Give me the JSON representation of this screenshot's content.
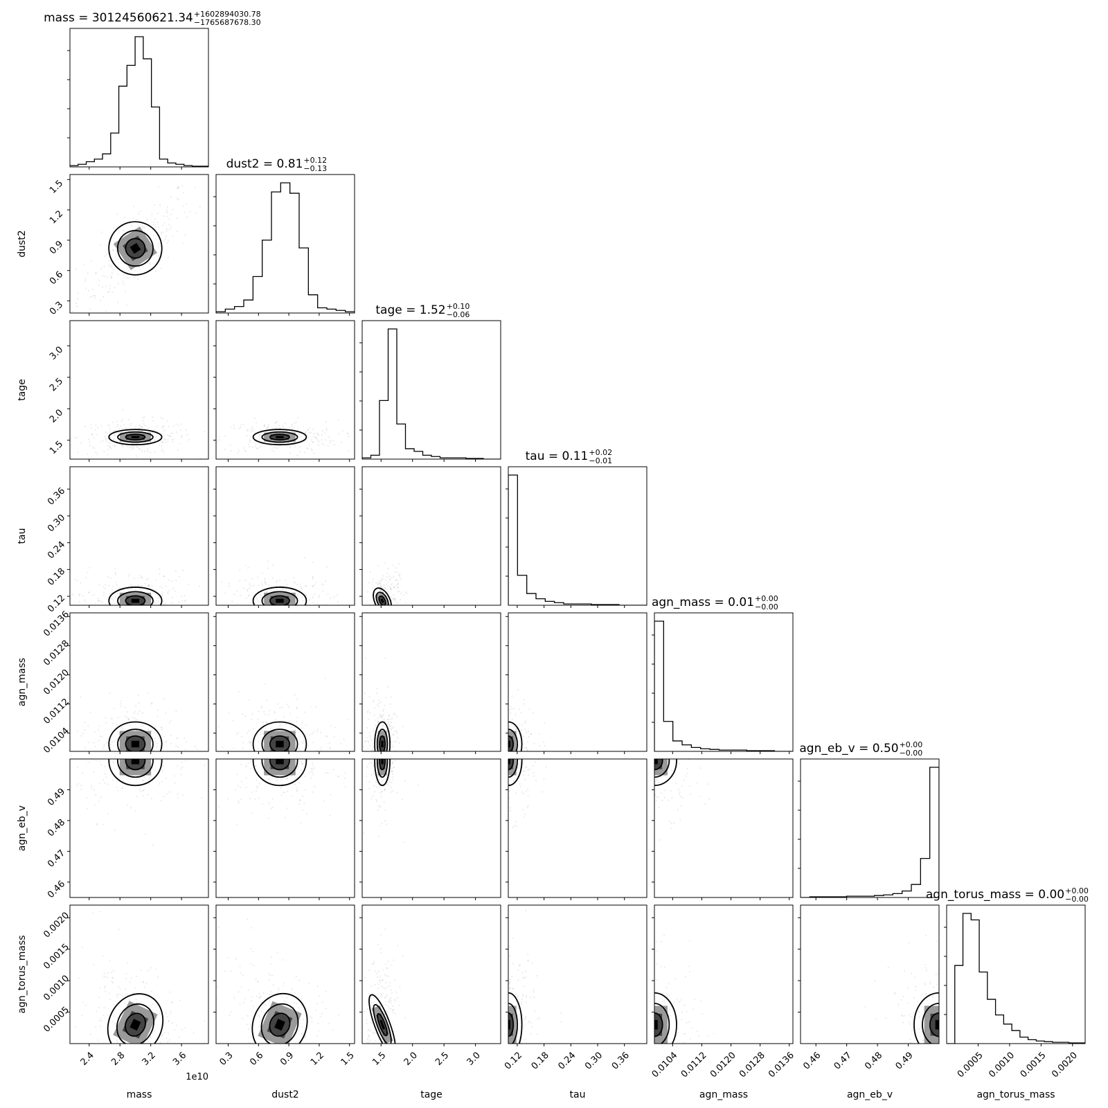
{
  "chart_data": {
    "type": "corner",
    "parameters": [
      {
        "name": "mass",
        "xlabel": "mass",
        "ylabel": "",
        "range": [
          21500000000.0,
          39500000000.0
        ],
        "median": 30120000000.0,
        "ticks": [
          24000000000.0,
          28000000000.0,
          32000000000.0,
          36000000000.0
        ],
        "tick_labels": [
          "2.4",
          "2.8",
          "3.2",
          "3.6"
        ],
        "offset_label": "1e10",
        "title": {
          "text": "mass = 30124560621.34",
          "plus": "+1602894030.78",
          "minus": "−1765687678.30"
        },
        "hist": [
          0.01,
          0.02,
          0.04,
          0.06,
          0.1,
          0.26,
          0.62,
          0.78,
          1.0,
          0.83,
          0.46,
          0.06,
          0.03,
          0.02,
          0.01,
          0.005,
          0.005
        ]
      },
      {
        "name": "dust2",
        "xlabel": "dust2",
        "ylabel": "dust2",
        "range": [
          0.18,
          1.55
        ],
        "median": 0.81,
        "ticks": [
          0.3,
          0.6,
          0.9,
          1.2,
          1.5
        ],
        "tick_labels": [
          "0.3",
          "0.6",
          "0.9",
          "1.2",
          "1.5"
        ],
        "offset_label": "",
        "title": {
          "text": "dust2 = 0.81",
          "plus": "+0.12",
          "minus": "−0.13"
        },
        "hist": [
          0.01,
          0.03,
          0.05,
          0.1,
          0.28,
          0.56,
          0.93,
          1.0,
          0.92,
          0.5,
          0.14,
          0.04,
          0.03,
          0.02,
          0.01
        ]
      },
      {
        "name": "tage",
        "xlabel": "tage",
        "ylabel": "tage",
        "range": [
          1.2,
          3.4
        ],
        "median": 1.52,
        "ticks": [
          1.5,
          2.0,
          2.5,
          3.0
        ],
        "tick_labels": [
          "1.5",
          "2.0",
          "2.5",
          "3.0"
        ],
        "offset_label": "",
        "title": {
          "text": "tage = 1.52",
          "plus": "+0.10",
          "minus": "−0.06"
        },
        "hist": [
          0.01,
          0.03,
          0.45,
          1.0,
          0.27,
          0.08,
          0.06,
          0.03,
          0.02,
          0.01,
          0.01,
          0.01,
          0.005,
          0.005,
          0.0,
          0.0
        ]
      },
      {
        "name": "tau",
        "xlabel": "tau",
        "ylabel": "tau",
        "range": [
          0.1,
          0.41
        ],
        "median": 0.11,
        "ticks": [
          0.12,
          0.18,
          0.24,
          0.3,
          0.36
        ],
        "tick_labels": [
          "0.12",
          "0.18",
          "0.24",
          "0.30",
          "0.36"
        ],
        "offset_label": "",
        "title": {
          "text": "tau = 0.11",
          "plus": "+0.02",
          "minus": "−0.01"
        },
        "hist": [
          1.0,
          0.23,
          0.09,
          0.05,
          0.03,
          0.02,
          0.01,
          0.01,
          0.01,
          0.005,
          0.005,
          0.005,
          0.0,
          0.0,
          0.0
        ]
      },
      {
        "name": "agn_mass",
        "xlabel": "agn_mass",
        "ylabel": "agn_mass",
        "range": [
          0.0099,
          0.0137
        ],
        "median": 0.01,
        "ticks": [
          0.0104,
          0.0112,
          0.012,
          0.0128,
          0.0136
        ],
        "tick_labels": [
          "0.0104",
          "0.0112",
          "0.0120",
          "0.0128",
          "0.0136"
        ],
        "offset_label": "",
        "title": {
          "text": "agn_mass = 0.01",
          "plus": "+0.00",
          "minus": "−0.00"
        },
        "hist": [
          1.0,
          0.23,
          0.08,
          0.05,
          0.03,
          0.02,
          0.015,
          0.01,
          0.01,
          0.01,
          0.005,
          0.005,
          0.005,
          0.0,
          0.0
        ]
      },
      {
        "name": "agn_eb_v",
        "xlabel": "agn_eb_v",
        "ylabel": "agn_eb_v",
        "range": [
          0.455,
          0.5
        ],
        "median": 0.5,
        "ticks": [
          0.46,
          0.47,
          0.48,
          0.49
        ],
        "tick_labels": [
          "0.46",
          "0.47",
          "0.48",
          "0.49"
        ],
        "offset_label": "",
        "title": {
          "text": "agn_eb_v = 0.50",
          "plus": "+0.00",
          "minus": "−0.00"
        },
        "hist": [
          0.0,
          0.005,
          0.005,
          0.005,
          0.005,
          0.01,
          0.01,
          0.01,
          0.015,
          0.02,
          0.03,
          0.05,
          0.1,
          0.3,
          1.0
        ]
      },
      {
        "name": "agn_torus_mass",
        "xlabel": "agn_torus_mass",
        "ylabel": "agn_torus_mass",
        "range": [
          0.0,
          0.0022
        ],
        "median": 0.0003,
        "ticks": [
          0.0005,
          0.001,
          0.0015,
          0.002
        ],
        "tick_labels": [
          "0.0005",
          "0.0010",
          "0.0015",
          "0.0020"
        ],
        "offset_label": "",
        "title": {
          "text": "agn_torus_mass = 0.00",
          "plus": "+0.00",
          "minus": "−0.00"
        },
        "hist": [
          0.0,
          0.6,
          1.0,
          0.95,
          0.55,
          0.34,
          0.22,
          0.15,
          0.1,
          0.05,
          0.03,
          0.02,
          0.015,
          0.01,
          0.01,
          0.005,
          0.005
        ]
      }
    ],
    "pairs": [
      {
        "row": 1,
        "col": 0,
        "center": [
          30000000000.0,
          0.82
        ],
        "spread": [
          1700000000.0,
          0.13
        ],
        "corr": 0.75
      },
      {
        "row": 2,
        "col": 0,
        "center": [
          30000000000.0,
          1.55
        ],
        "spread": [
          1700000000.0,
          0.06
        ],
        "corr": 0.0
      },
      {
        "row": 2,
        "col": 1,
        "center": [
          0.81,
          1.55
        ],
        "spread": [
          0.13,
          0.06
        ],
        "corr": 0.0
      },
      {
        "row": 3,
        "col": 0,
        "center": [
          30000000000.0,
          0.11
        ],
        "spread": [
          1700000000.0,
          0.015
        ],
        "corr": 0.0
      },
      {
        "row": 3,
        "col": 1,
        "center": [
          0.81,
          0.11
        ],
        "spread": [
          0.13,
          0.015
        ],
        "corr": 0.0
      },
      {
        "row": 3,
        "col": 2,
        "center": [
          1.52,
          0.11
        ],
        "spread": [
          0.06,
          0.015
        ],
        "corr": 0.3
      },
      {
        "row": 4,
        "col": 0,
        "center": [
          30000000000.0,
          0.0101
        ],
        "spread": [
          1700000000.0,
          0.0003
        ],
        "corr": 0.0
      },
      {
        "row": 4,
        "col": 1,
        "center": [
          0.81,
          0.0101
        ],
        "spread": [
          0.13,
          0.0003
        ],
        "corr": 0.0
      },
      {
        "row": 4,
        "col": 2,
        "center": [
          1.52,
          0.0101
        ],
        "spread": [
          0.06,
          0.0003
        ],
        "corr": 0.0
      },
      {
        "row": 4,
        "col": 3,
        "center": [
          0.1,
          0.0101
        ],
        "spread": [
          0.015,
          0.0003
        ],
        "corr": 0.0
      },
      {
        "row": 5,
        "col": 0,
        "center": [
          30000000000.0,
          0.4995
        ],
        "spread": [
          1700000000.0,
          0.004
        ],
        "corr": 0.0
      },
      {
        "row": 5,
        "col": 1,
        "center": [
          0.81,
          0.4995
        ],
        "spread": [
          0.13,
          0.004
        ],
        "corr": 0.0
      },
      {
        "row": 5,
        "col": 2,
        "center": [
          1.52,
          0.4995
        ],
        "spread": [
          0.06,
          0.004
        ],
        "corr": 0.0
      },
      {
        "row": 5,
        "col": 3,
        "center": [
          0.1,
          0.4995
        ],
        "spread": [
          0.015,
          0.004
        ],
        "corr": 0.0
      },
      {
        "row": 5,
        "col": 4,
        "center": [
          0.0099,
          0.4995
        ],
        "spread": [
          0.0003,
          0.004
        ],
        "corr": 0.0
      },
      {
        "row": 6,
        "col": 0,
        "center": [
          30000000000.0,
          0.0003
        ],
        "spread": [
          1700000000.0,
          0.00025
        ],
        "corr": -0.45
      },
      {
        "row": 6,
        "col": 1,
        "center": [
          0.81,
          0.0003
        ],
        "spread": [
          0.13,
          0.00025
        ],
        "corr": -0.4
      },
      {
        "row": 6,
        "col": 2,
        "center": [
          1.52,
          0.0003
        ],
        "spread": [
          0.06,
          0.00025
        ],
        "corr": 0.1
      },
      {
        "row": 6,
        "col": 3,
        "center": [
          0.1,
          0.0003
        ],
        "spread": [
          0.015,
          0.00025
        ],
        "corr": 0.0
      },
      {
        "row": 6,
        "col": 4,
        "center": [
          0.0099,
          0.0003
        ],
        "spread": [
          0.0003,
          0.00025
        ],
        "corr": 0.0
      },
      {
        "row": 6,
        "col": 5,
        "center": [
          0.5,
          0.0003
        ],
        "spread": [
          0.004,
          0.00025
        ],
        "corr": 0.0
      }
    ]
  }
}
